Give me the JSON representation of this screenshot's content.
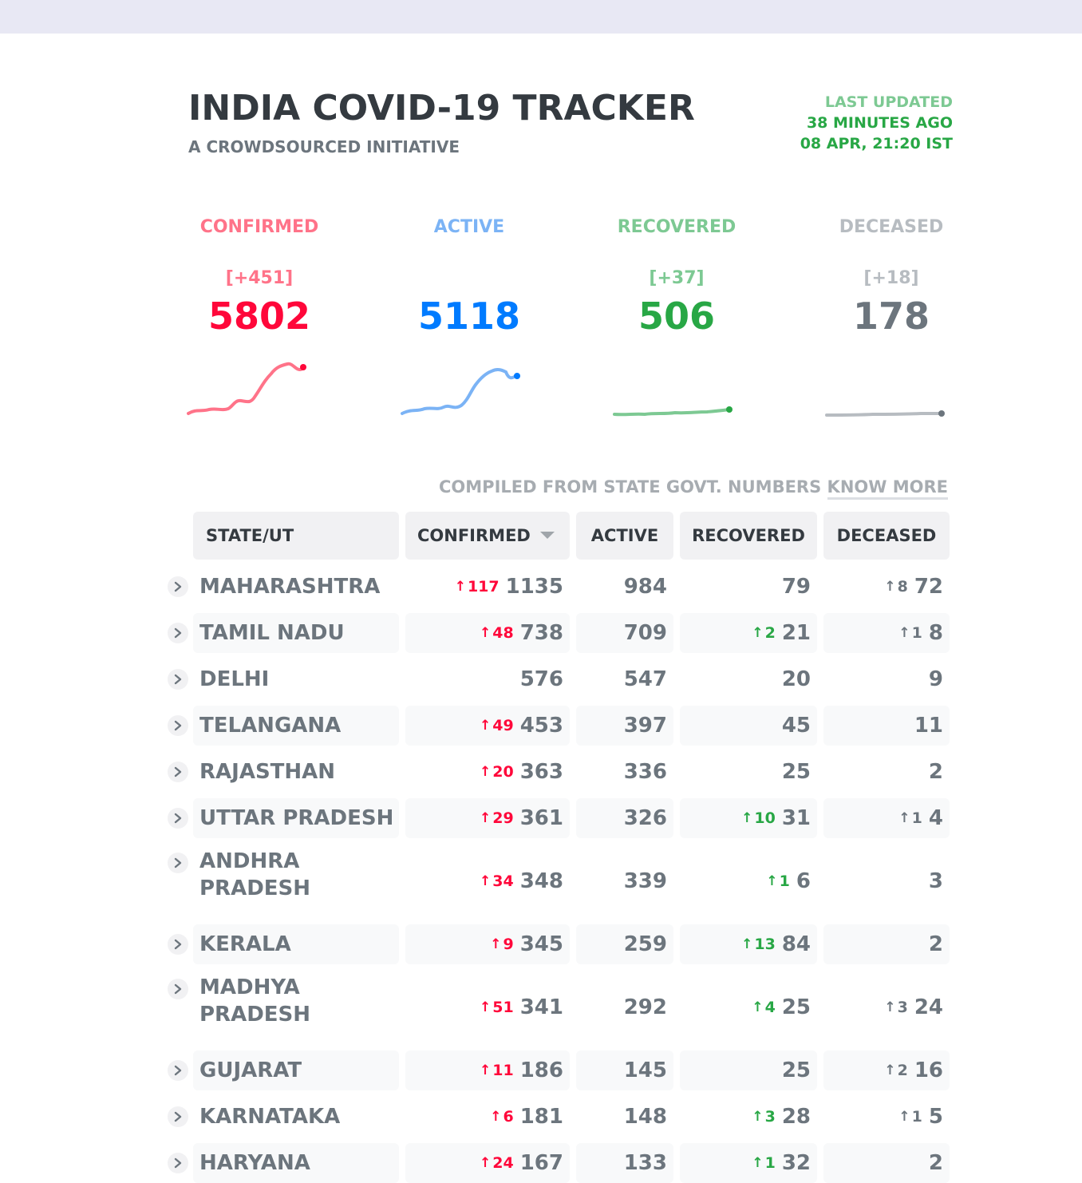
{
  "header": {
    "title": "INDIA COVID-19 TRACKER",
    "subtitle": "A CROWDSOURCED INITIATIVE",
    "last_updated_label": "LAST UPDATED",
    "last_updated_relative": "38 MINUTES AGO",
    "last_updated_time": "08 APR, 21:20 IST"
  },
  "stats": {
    "confirmed": {
      "label": "CONFIRMED",
      "delta": "[+451]",
      "value": "5802",
      "color": "#ff073a"
    },
    "active": {
      "label": "ACTIVE",
      "delta": "",
      "value": "5118",
      "color": "#007bff"
    },
    "recovered": {
      "label": "RECOVERED",
      "delta": "[+37]",
      "value": "506",
      "color": "#28a745"
    },
    "deceased": {
      "label": "DECEASED",
      "delta": "[+18]",
      "value": "178",
      "color": "#6c757d"
    }
  },
  "compiled": {
    "text": "COMPILED FROM STATE GOVT. NUMBERS",
    "link": "KNOW MORE"
  },
  "table": {
    "headers": {
      "state": "STATE/UT",
      "confirmed": "CONFIRMED",
      "active": "ACTIVE",
      "recovered": "RECOVERED",
      "deceased": "DECEASED"
    },
    "rows": [
      {
        "state": "MAHARASHTRA",
        "conf_delta": "117",
        "confirmed": "1135",
        "active": "984",
        "rec_delta": "",
        "recovered": "79",
        "dec_delta": "8",
        "deceased": "72"
      },
      {
        "state": "TAMIL NADU",
        "conf_delta": "48",
        "confirmed": "738",
        "active": "709",
        "rec_delta": "2",
        "recovered": "21",
        "dec_delta": "1",
        "deceased": "8"
      },
      {
        "state": "DELHI",
        "conf_delta": "",
        "confirmed": "576",
        "active": "547",
        "rec_delta": "",
        "recovered": "20",
        "dec_delta": "",
        "deceased": "9"
      },
      {
        "state": "TELANGANA",
        "conf_delta": "49",
        "confirmed": "453",
        "active": "397",
        "rec_delta": "",
        "recovered": "45",
        "dec_delta": "",
        "deceased": "11"
      },
      {
        "state": "RAJASTHAN",
        "conf_delta": "20",
        "confirmed": "363",
        "active": "336",
        "rec_delta": "",
        "recovered": "25",
        "dec_delta": "",
        "deceased": "2"
      },
      {
        "state": "UTTAR PRADESH",
        "conf_delta": "29",
        "confirmed": "361",
        "active": "326",
        "rec_delta": "10",
        "recovered": "31",
        "dec_delta": "1",
        "deceased": "4"
      },
      {
        "state": "ANDHRA PRADESH",
        "conf_delta": "34",
        "confirmed": "348",
        "active": "339",
        "rec_delta": "1",
        "recovered": "6",
        "dec_delta": "",
        "deceased": "3"
      },
      {
        "state": "KERALA",
        "conf_delta": "9",
        "confirmed": "345",
        "active": "259",
        "rec_delta": "13",
        "recovered": "84",
        "dec_delta": "",
        "deceased": "2"
      },
      {
        "state": "MADHYA PRADESH",
        "conf_delta": "51",
        "confirmed": "341",
        "active": "292",
        "rec_delta": "4",
        "recovered": "25",
        "dec_delta": "3",
        "deceased": "24"
      },
      {
        "state": "GUJARAT",
        "conf_delta": "11",
        "confirmed": "186",
        "active": "145",
        "rec_delta": "",
        "recovered": "25",
        "dec_delta": "2",
        "deceased": "16"
      },
      {
        "state": "KARNATAKA",
        "conf_delta": "6",
        "confirmed": "181",
        "active": "148",
        "rec_delta": "3",
        "recovered": "28",
        "dec_delta": "1",
        "deceased": "5"
      },
      {
        "state": "HARYANA",
        "conf_delta": "24",
        "confirmed": "167",
        "active": "133",
        "rec_delta": "1",
        "recovered": "32",
        "dec_delta": "",
        "deceased": "2"
      }
    ]
  }
}
